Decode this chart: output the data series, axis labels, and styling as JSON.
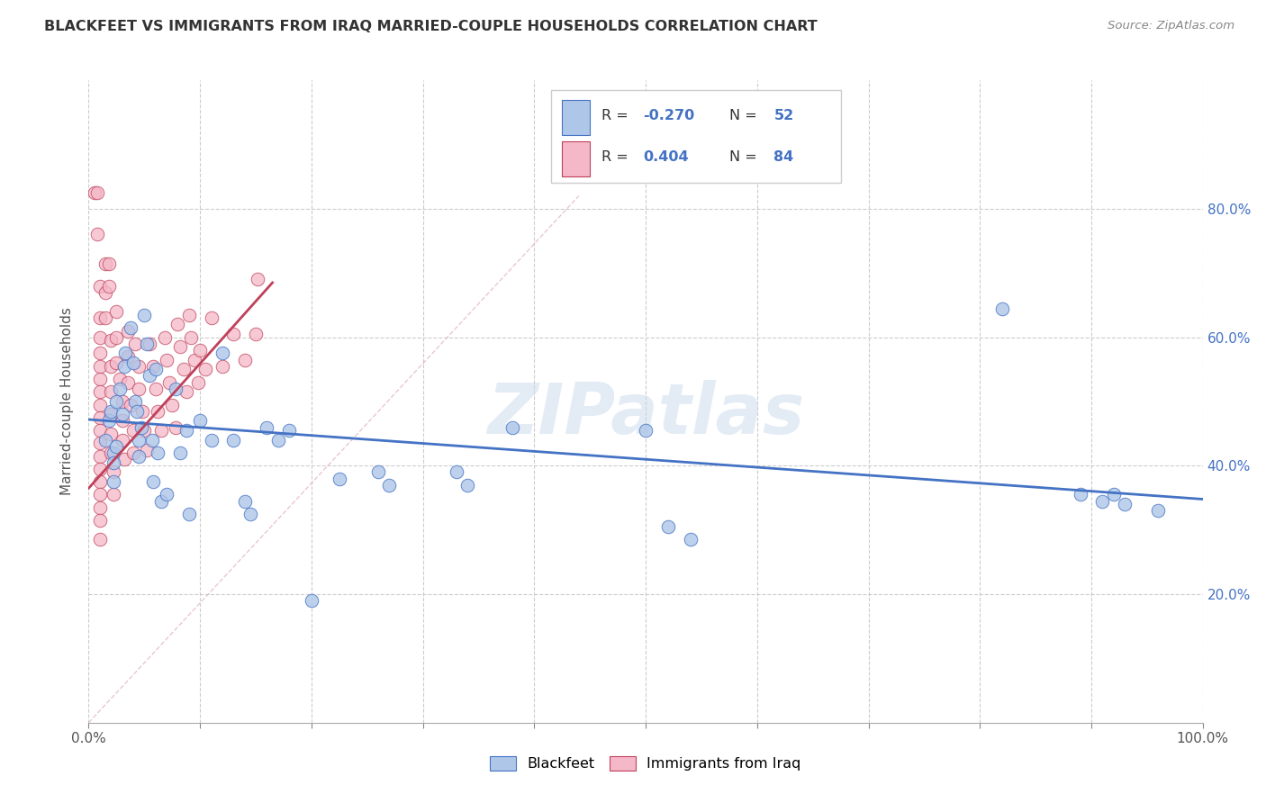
{
  "title": "BLACKFEET VS IMMIGRANTS FROM IRAQ MARRIED-COUPLE HOUSEHOLDS CORRELATION CHART",
  "source": "Source: ZipAtlas.com",
  "ylabel": "Married-couple Households",
  "watermark": "ZIPatlas",
  "xlim": [
    0.0,
    1.0
  ],
  "ylim": [
    0.0,
    1.0
  ],
  "xticks": [
    0.0,
    0.1,
    0.2,
    0.3,
    0.4,
    0.5,
    0.6,
    0.7,
    0.8,
    0.9,
    1.0
  ],
  "yticks": [
    0.2,
    0.4,
    0.6,
    0.8
  ],
  "color_blue": "#aec6e8",
  "color_pink": "#f4b8c8",
  "line_blue": "#4472c4",
  "line_pink": "#c0405a",
  "blue_points": [
    [
      0.015,
      0.44
    ],
    [
      0.018,
      0.47
    ],
    [
      0.02,
      0.485
    ],
    [
      0.022,
      0.42
    ],
    [
      0.022,
      0.405
    ],
    [
      0.022,
      0.375
    ],
    [
      0.025,
      0.43
    ],
    [
      0.025,
      0.5
    ],
    [
      0.028,
      0.52
    ],
    [
      0.03,
      0.48
    ],
    [
      0.032,
      0.555
    ],
    [
      0.033,
      0.575
    ],
    [
      0.038,
      0.615
    ],
    [
      0.04,
      0.56
    ],
    [
      0.042,
      0.5
    ],
    [
      0.043,
      0.485
    ],
    [
      0.045,
      0.44
    ],
    [
      0.045,
      0.415
    ],
    [
      0.047,
      0.46
    ],
    [
      0.05,
      0.635
    ],
    [
      0.052,
      0.59
    ],
    [
      0.055,
      0.54
    ],
    [
      0.057,
      0.44
    ],
    [
      0.058,
      0.375
    ],
    [
      0.06,
      0.55
    ],
    [
      0.062,
      0.42
    ],
    [
      0.065,
      0.345
    ],
    [
      0.07,
      0.355
    ],
    [
      0.078,
      0.52
    ],
    [
      0.082,
      0.42
    ],
    [
      0.088,
      0.455
    ],
    [
      0.09,
      0.325
    ],
    [
      0.1,
      0.47
    ],
    [
      0.11,
      0.44
    ],
    [
      0.12,
      0.575
    ],
    [
      0.13,
      0.44
    ],
    [
      0.14,
      0.345
    ],
    [
      0.145,
      0.325
    ],
    [
      0.16,
      0.46
    ],
    [
      0.17,
      0.44
    ],
    [
      0.18,
      0.455
    ],
    [
      0.2,
      0.19
    ],
    [
      0.225,
      0.38
    ],
    [
      0.26,
      0.39
    ],
    [
      0.27,
      0.37
    ],
    [
      0.33,
      0.39
    ],
    [
      0.34,
      0.37
    ],
    [
      0.38,
      0.46
    ],
    [
      0.5,
      0.455
    ],
    [
      0.52,
      0.305
    ],
    [
      0.54,
      0.285
    ],
    [
      0.82,
      0.645
    ],
    [
      0.89,
      0.355
    ],
    [
      0.91,
      0.345
    ],
    [
      0.92,
      0.355
    ],
    [
      0.93,
      0.34
    ],
    [
      0.96,
      0.33
    ]
  ],
  "pink_points": [
    [
      0.005,
      0.825
    ],
    [
      0.008,
      0.825
    ],
    [
      0.008,
      0.76
    ],
    [
      0.01,
      0.68
    ],
    [
      0.01,
      0.63
    ],
    [
      0.01,
      0.6
    ],
    [
      0.01,
      0.575
    ],
    [
      0.01,
      0.555
    ],
    [
      0.01,
      0.535
    ],
    [
      0.01,
      0.515
    ],
    [
      0.01,
      0.495
    ],
    [
      0.01,
      0.475
    ],
    [
      0.01,
      0.455
    ],
    [
      0.01,
      0.435
    ],
    [
      0.01,
      0.415
    ],
    [
      0.01,
      0.395
    ],
    [
      0.01,
      0.375
    ],
    [
      0.01,
      0.355
    ],
    [
      0.01,
      0.335
    ],
    [
      0.01,
      0.315
    ],
    [
      0.01,
      0.285
    ],
    [
      0.015,
      0.715
    ],
    [
      0.015,
      0.67
    ],
    [
      0.015,
      0.63
    ],
    [
      0.018,
      0.715
    ],
    [
      0.018,
      0.68
    ],
    [
      0.02,
      0.595
    ],
    [
      0.02,
      0.555
    ],
    [
      0.02,
      0.515
    ],
    [
      0.02,
      0.48
    ],
    [
      0.02,
      0.45
    ],
    [
      0.02,
      0.42
    ],
    [
      0.022,
      0.39
    ],
    [
      0.022,
      0.355
    ],
    [
      0.025,
      0.64
    ],
    [
      0.025,
      0.6
    ],
    [
      0.025,
      0.56
    ],
    [
      0.028,
      0.535
    ],
    [
      0.03,
      0.5
    ],
    [
      0.03,
      0.47
    ],
    [
      0.03,
      0.44
    ],
    [
      0.032,
      0.41
    ],
    [
      0.035,
      0.61
    ],
    [
      0.035,
      0.57
    ],
    [
      0.035,
      0.53
    ],
    [
      0.038,
      0.495
    ],
    [
      0.04,
      0.455
    ],
    [
      0.04,
      0.42
    ],
    [
      0.042,
      0.59
    ],
    [
      0.045,
      0.555
    ],
    [
      0.045,
      0.52
    ],
    [
      0.048,
      0.485
    ],
    [
      0.05,
      0.455
    ],
    [
      0.052,
      0.425
    ],
    [
      0.055,
      0.59
    ],
    [
      0.058,
      0.555
    ],
    [
      0.06,
      0.52
    ],
    [
      0.062,
      0.485
    ],
    [
      0.065,
      0.455
    ],
    [
      0.068,
      0.6
    ],
    [
      0.07,
      0.565
    ],
    [
      0.072,
      0.53
    ],
    [
      0.075,
      0.495
    ],
    [
      0.078,
      0.46
    ],
    [
      0.08,
      0.62
    ],
    [
      0.082,
      0.585
    ],
    [
      0.085,
      0.55
    ],
    [
      0.088,
      0.515
    ],
    [
      0.09,
      0.635
    ],
    [
      0.092,
      0.6
    ],
    [
      0.095,
      0.565
    ],
    [
      0.098,
      0.53
    ],
    [
      0.1,
      0.58
    ],
    [
      0.105,
      0.55
    ],
    [
      0.11,
      0.63
    ],
    [
      0.12,
      0.555
    ],
    [
      0.13,
      0.605
    ],
    [
      0.14,
      0.565
    ],
    [
      0.15,
      0.605
    ],
    [
      0.152,
      0.69
    ]
  ],
  "blue_line_x": [
    0.0,
    1.0
  ],
  "blue_line_y": [
    0.472,
    0.348
  ],
  "pink_line_x": [
    0.0,
    0.165
  ],
  "pink_line_y": [
    0.365,
    0.685
  ],
  "diag_line_x": [
    0.0,
    0.44
  ],
  "diag_line_y": [
    0.0,
    0.82
  ]
}
